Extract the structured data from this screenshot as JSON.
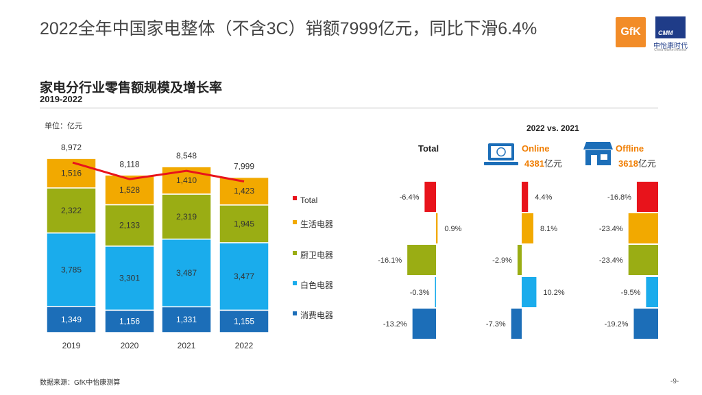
{
  "page": {
    "title": "2022全年中国家电整体（不含3C）销额7999亿元，同比下滑6.4%",
    "section_title": "家电分行业零售额规模及增长率",
    "section_subtitle": "2019-2022",
    "unit": "单位：亿元",
    "compare_title": "2022 vs. 2021",
    "source": "数据来源：GfK中怡康测算",
    "page_number": "-9-"
  },
  "logos": {
    "gfk": "GfK",
    "cmm": "CMM",
    "cmm_name": "中怡康时代",
    "cmm_en": "China Market Monitor"
  },
  "colors": {
    "total": "#e8131b",
    "life": "#f2a900",
    "kitchen": "#9aad14",
    "white": "#1aacec",
    "consumer": "#1c6eb8",
    "online_accent": "#f07d00",
    "icon_blue": "#1c6eb8"
  },
  "channels": {
    "total_label": "Total",
    "online_label": "Online",
    "online_value": "4381",
    "offline_label": "Offline",
    "offline_value": "3618",
    "value_unit": "亿元"
  },
  "chart_data": [
    {
      "type": "bar",
      "stacked": true,
      "categories": [
        "2019",
        "2020",
        "2021",
        "2022"
      ],
      "series": [
        {
          "name": "消费电器",
          "values": [
            1349,
            1156,
            1331,
            1155
          ],
          "labels": [
            "1,349",
            "1,156",
            "1,331",
            "1,155"
          ]
        },
        {
          "name": "白色电器",
          "values": [
            3785,
            3301,
            3487,
            3477
          ],
          "labels": [
            "3,785",
            "3,301",
            "3,487",
            "3,477"
          ]
        },
        {
          "name": "厨卫电器",
          "values": [
            2322,
            2133,
            2319,
            1945
          ],
          "labels": [
            "2,322",
            "2,133",
            "2,319",
            "1,945"
          ]
        },
        {
          "name": "生活电器",
          "values": [
            1516,
            1528,
            1410,
            1423
          ],
          "labels": [
            "1,516",
            "1,528",
            "1,410",
            "1,423"
          ]
        }
      ],
      "totals": [
        8972,
        8118,
        8548,
        7999
      ],
      "total_labels": [
        "8,972",
        "8,118",
        "8,548",
        "7,999"
      ],
      "legend": [
        "Total",
        "生活电器",
        "厨卫电器",
        "白色电器",
        "消费电器"
      ]
    },
    {
      "type": "bar",
      "orientation": "horizontal",
      "categories": [
        "Total",
        "生活电器",
        "厨卫电器",
        "白色电器",
        "消费电器"
      ],
      "series": [
        {
          "name": "Total",
          "values": [
            -6.4,
            0.9,
            -16.1,
            -0.3,
            -13.2
          ],
          "labels": [
            "-6.4%",
            "0.9%",
            "-16.1%",
            "-0.3%",
            "-13.2%"
          ]
        },
        {
          "name": "Online",
          "values": [
            4.4,
            8.1,
            -2.9,
            10.2,
            -7.3
          ],
          "labels": [
            "4.4%",
            "8.1%",
            "-2.9%",
            "10.2%",
            "-7.3%"
          ]
        },
        {
          "name": "Offline",
          "values": [
            -16.8,
            -23.4,
            -23.4,
            -9.5,
            -19.2
          ],
          "labels": [
            "-16.8%",
            "-23.4%",
            "-23.4%",
            "-9.5%",
            "-19.2%"
          ]
        }
      ]
    }
  ]
}
